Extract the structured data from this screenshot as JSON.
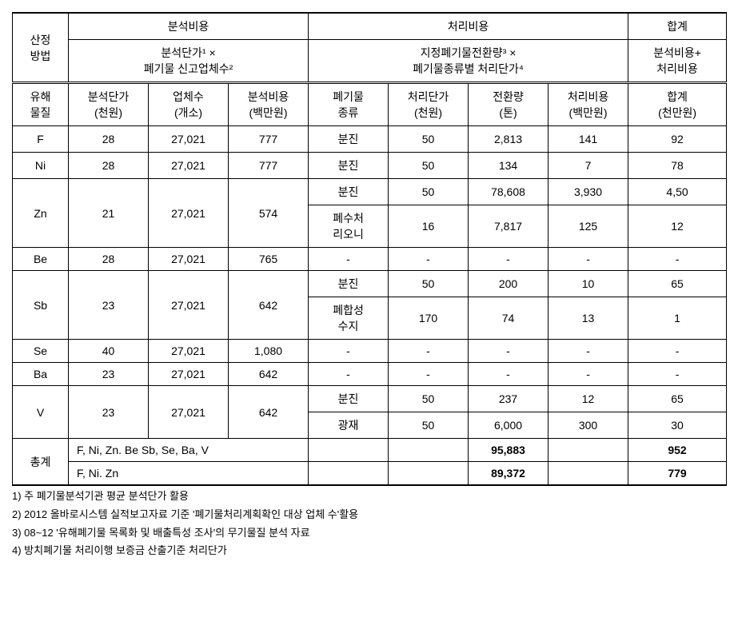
{
  "headers": {
    "method": "산정\n방법",
    "group_analysis": "분석비용",
    "group_treatment": "처리비용",
    "group_total": "합계",
    "formula_analysis": "분석단가¹ ×\n폐기물 신고업체수²",
    "formula_treatment": "지정폐기물전환량³ ×\n폐기물종류별 처리단가⁴",
    "formula_total": "분석비용+\n처리비용",
    "col_substance": "유해\n물질",
    "col_unit_price": "분석단가\n(천원)",
    "col_companies": "업체수\n(개소)",
    "col_analysis_cost": "분석비용\n(백만원)",
    "col_waste_type": "폐기물\n종류",
    "col_treatment_price": "처리단가\n(천원)",
    "col_conversion": "전환량\n(톤)",
    "col_treatment_cost": "처리비용\n(백만원)",
    "col_total": "합계\n(천만원)"
  },
  "rows": {
    "F": {
      "price": "28",
      "companies": "27,021",
      "analysis": "777",
      "waste": "분진",
      "tprice": "50",
      "conv": "2,813",
      "tcost": "141",
      "total": "92"
    },
    "Ni": {
      "price": "28",
      "companies": "27,021",
      "analysis": "777",
      "waste": "분진",
      "tprice": "50",
      "conv": "134",
      "tcost": "7",
      "total": "78"
    },
    "Zn": {
      "price": "21",
      "companies": "27,021",
      "analysis": "574",
      "sub": [
        {
          "waste": "분진",
          "tprice": "50",
          "conv": "78,608",
          "tcost": "3,930",
          "total": "4,50"
        },
        {
          "waste": "폐수처\n리오니",
          "tprice": "16",
          "conv": "7,817",
          "tcost": "125",
          "total": "12"
        }
      ]
    },
    "Be": {
      "price": "28",
      "companies": "27,021",
      "analysis": "765",
      "waste": "-",
      "tprice": "-",
      "conv": "-",
      "tcost": "-",
      "total": "-"
    },
    "Sb": {
      "price": "23",
      "companies": "27,021",
      "analysis": "642",
      "sub": [
        {
          "waste": "분진",
          "tprice": "50",
          "conv": "200",
          "tcost": "10",
          "total": "65"
        },
        {
          "waste": "폐합성\n수지",
          "tprice": "170",
          "conv": "74",
          "tcost": "13",
          "total": "1"
        }
      ]
    },
    "Se": {
      "price": "40",
      "companies": "27,021",
      "analysis": "1,080",
      "waste": "-",
      "tprice": "-",
      "conv": "-",
      "tcost": "-",
      "total": "-"
    },
    "Ba": {
      "price": "23",
      "companies": "27,021",
      "analysis": "642",
      "waste": "-",
      "tprice": "-",
      "conv": "-",
      "tcost": "-",
      "total": "-"
    },
    "V": {
      "price": "23",
      "companies": "27,021",
      "analysis": "642",
      "sub": [
        {
          "waste": "분진",
          "tprice": "50",
          "conv": "237",
          "tcost": "12",
          "total": "65"
        },
        {
          "waste": "광재",
          "tprice": "50",
          "conv": "6,000",
          "tcost": "300",
          "total": "30"
        }
      ]
    }
  },
  "totals": {
    "label": "총계",
    "row1": {
      "desc": "F, Ni, Zn. Be Sb, Se, Ba, V",
      "conv": "95,883",
      "total": "952"
    },
    "row2": {
      "desc": "F, Ni. Zn",
      "conv": "89,372",
      "total": "779"
    }
  },
  "footnotes": {
    "n1": "1) 주 폐기물분석기관 평균 분석단가 활용",
    "n2": "2) 2012 올바로시스템 실적보고자료 기준 '폐기물처리계획확인 대상 업체 수'활용",
    "n3": "3) 08~12 '유해폐기물 목록화 및 배출특성 조사'의 무기물질 분석 자료",
    "n4": "4) 방치폐기물 처리이행 보증금 산출기준 처리단가"
  }
}
